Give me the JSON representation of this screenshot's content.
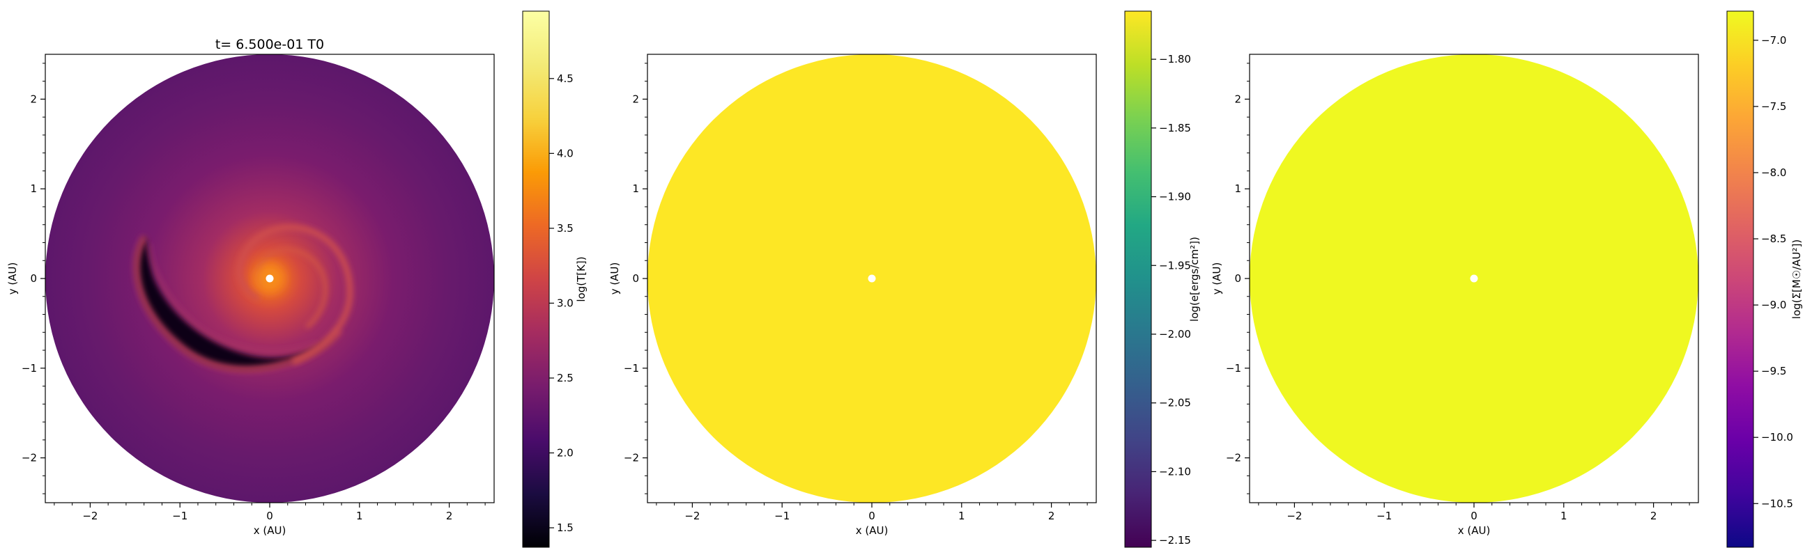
{
  "chart_data": [
    {
      "type": "heatmap",
      "title": "t= 6.500e-01 T0",
      "xlabel": "x (AU)",
      "ylabel": "y (AU)",
      "xlim": [
        -2.5,
        2.5
      ],
      "ylim": [
        -2.5,
        2.5
      ],
      "xticks": [
        -2,
        -1,
        0,
        1,
        2
      ],
      "yticks": [
        -2,
        -1,
        0,
        1,
        2
      ],
      "disk_outer_radius": 2.5,
      "colormap": "inferno",
      "colorbar": {
        "label": "log(T[K])",
        "range": [
          1.37,
          4.95
        ],
        "ticks": [
          1.5,
          2.0,
          2.5,
          3.0,
          3.5,
          4.0,
          4.5
        ],
        "tick_labels": [
          "1.5",
          "2.0",
          "2.5",
          "3.0",
          "3.5",
          "4.0",
          "4.5"
        ]
      }
    },
    {
      "type": "heatmap",
      "title": "",
      "xlabel": "x (AU)",
      "ylabel": "y (AU)",
      "xlim": [
        -2.5,
        2.5
      ],
      "ylim": [
        -2.5,
        2.5
      ],
      "xticks": [
        -2,
        -1,
        0,
        1,
        2
      ],
      "yticks": [
        -2,
        -1,
        0,
        1,
        2
      ],
      "disk_outer_radius": 2.5,
      "colormap": "viridis",
      "uniform_color": "#fde725",
      "colorbar": {
        "label": "log(e[ergs/cm²])",
        "range": [
          -2.155,
          -1.765
        ],
        "ticks": [
          -2.15,
          -2.1,
          -2.05,
          -2.0,
          -1.95,
          -1.9,
          -1.85,
          -1.8
        ],
        "tick_labels": [
          "−2.15",
          "−2.10",
          "−2.05",
          "−2.00",
          "−1.95",
          "−1.90",
          "−1.85",
          "−1.80"
        ]
      }
    },
    {
      "type": "heatmap",
      "title": "",
      "xlabel": "x (AU)",
      "ylabel": "y (AU)",
      "xlim": [
        -2.5,
        2.5
      ],
      "ylim": [
        -2.5,
        2.5
      ],
      "xticks": [
        -2,
        -1,
        0,
        1,
        2
      ],
      "yticks": [
        -2,
        -1,
        0,
        1,
        2
      ],
      "disk_outer_radius": 2.5,
      "colormap": "plasma",
      "uniform_color": "#eff821",
      "colorbar": {
        "label": "log(Σ[M☉/AU²])",
        "range": [
          -10.83,
          -6.78
        ],
        "ticks": [
          -10.5,
          -10.0,
          -9.5,
          -9.0,
          -8.5,
          -8.0,
          -7.5,
          -7.0
        ],
        "tick_labels": [
          "−10.5",
          "−10.0",
          "−9.5",
          "−9.0",
          "−8.5",
          "−8.0",
          "−7.5",
          "−7.0"
        ]
      }
    }
  ]
}
